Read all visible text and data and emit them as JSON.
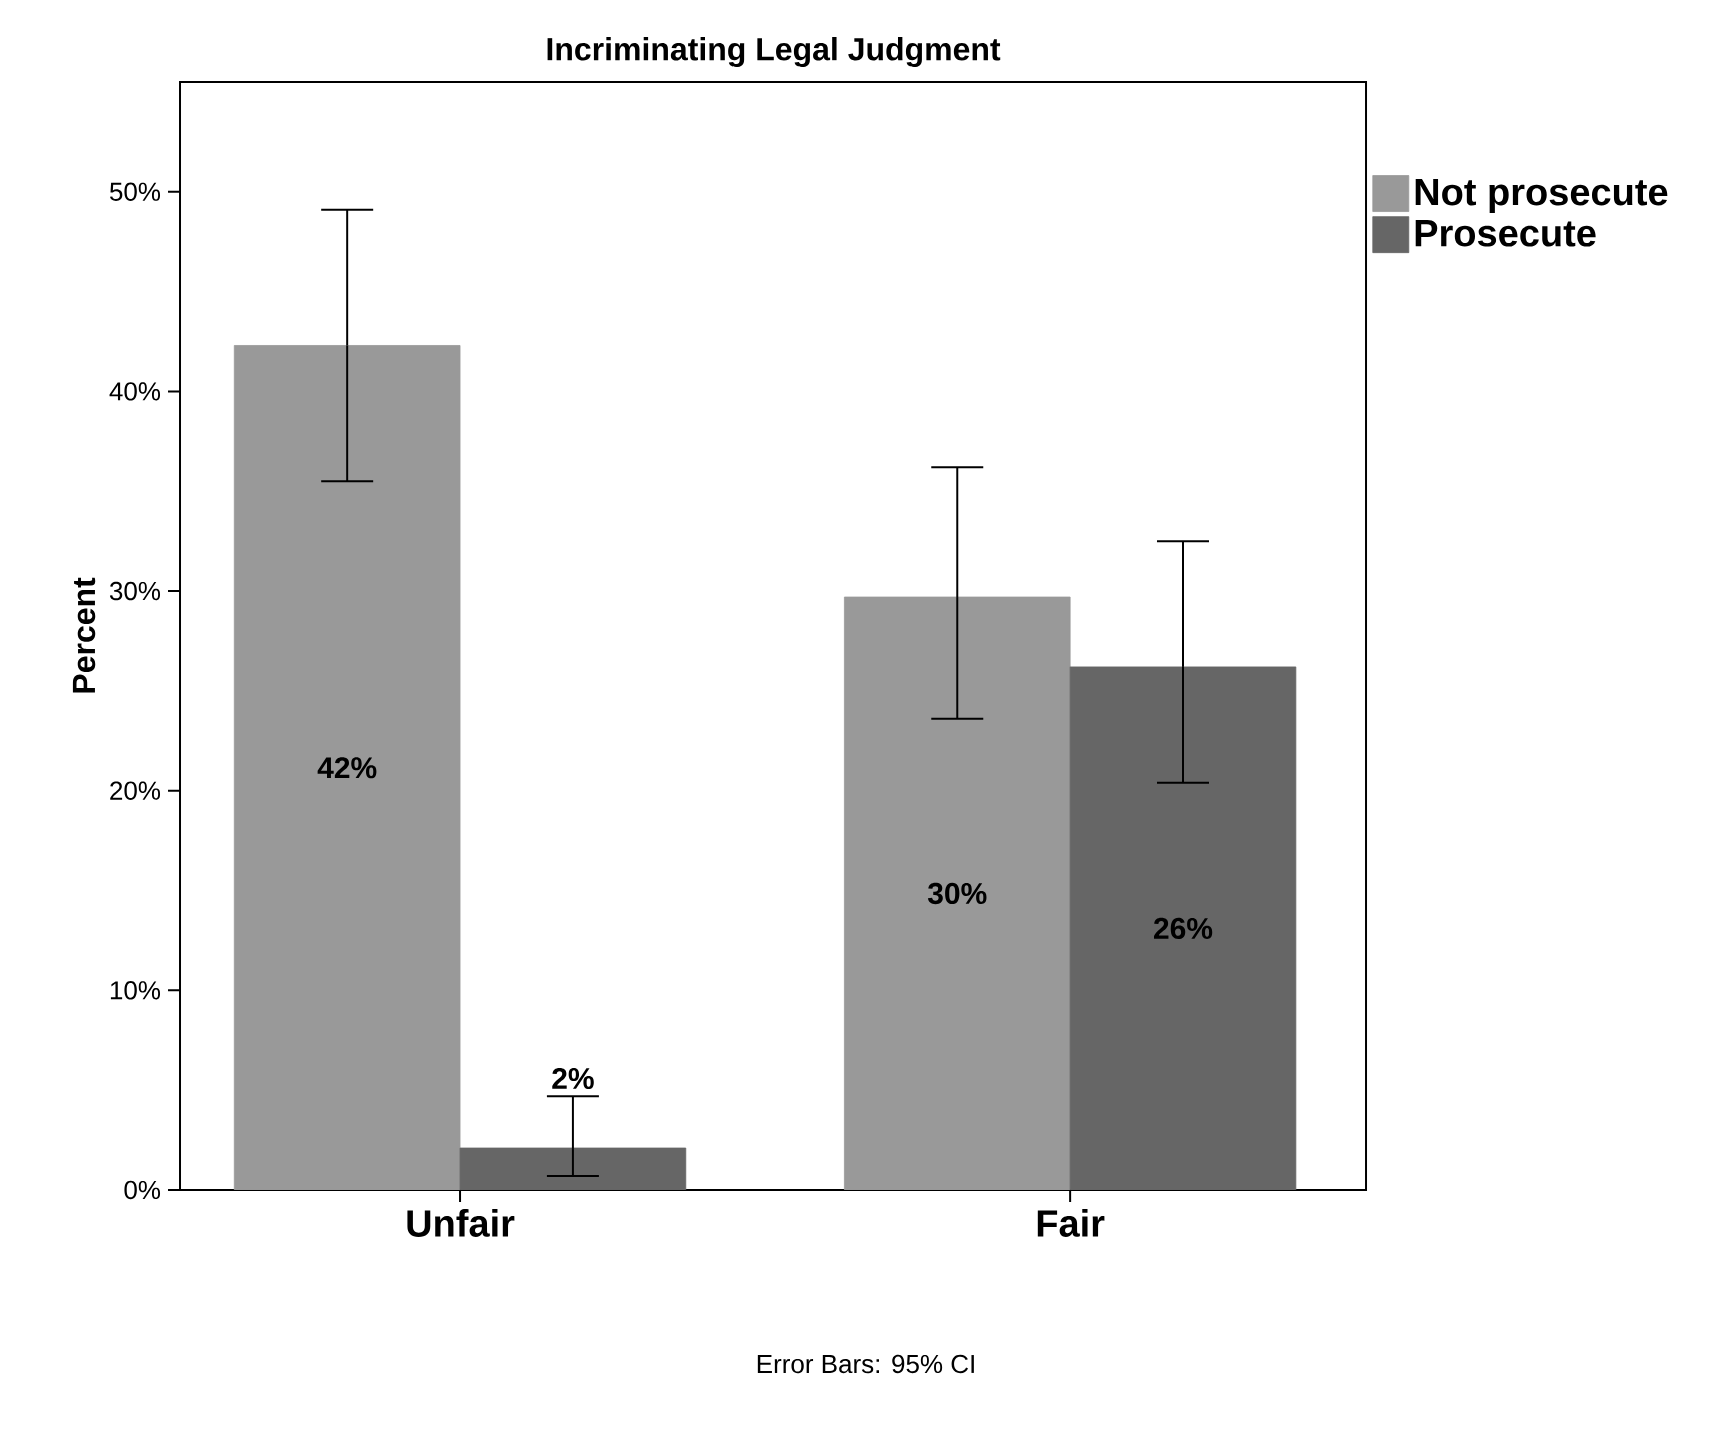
{
  "chart_data": {
    "type": "bar",
    "title": "Incriminating Legal Judgment",
    "ylabel": "Percent",
    "categories": [
      "Unfair",
      "Fair"
    ],
    "series": [
      {
        "name": "Not prosecute",
        "color": "#999999",
        "values": [
          42.3,
          29.7
        ],
        "errors": [
          [
            35.5,
            49.1
          ],
          [
            23.6,
            36.2
          ]
        ],
        "value_labels": [
          "42%",
          "30%"
        ]
      },
      {
        "name": "Prosecute",
        "color": "#666666",
        "values": [
          2.1,
          26.2
        ],
        "errors": [
          [
            0.7,
            4.7
          ],
          [
            20.4,
            32.5
          ]
        ],
        "value_labels": [
          "2%",
          "26%"
        ]
      }
    ],
    "ylim": [
      0,
      55.5
    ],
    "yticks": [
      {
        "value": 0,
        "label": "0%"
      },
      {
        "value": 10,
        "label": "10%"
      },
      {
        "value": 20,
        "label": "20%"
      },
      {
        "value": 30,
        "label": "30%"
      },
      {
        "value": 40,
        "label": "40%"
      },
      {
        "value": 50,
        "label": "50%"
      }
    ],
    "legend": "right",
    "annotations": [
      "Error Bars: 95% CI"
    ]
  }
}
